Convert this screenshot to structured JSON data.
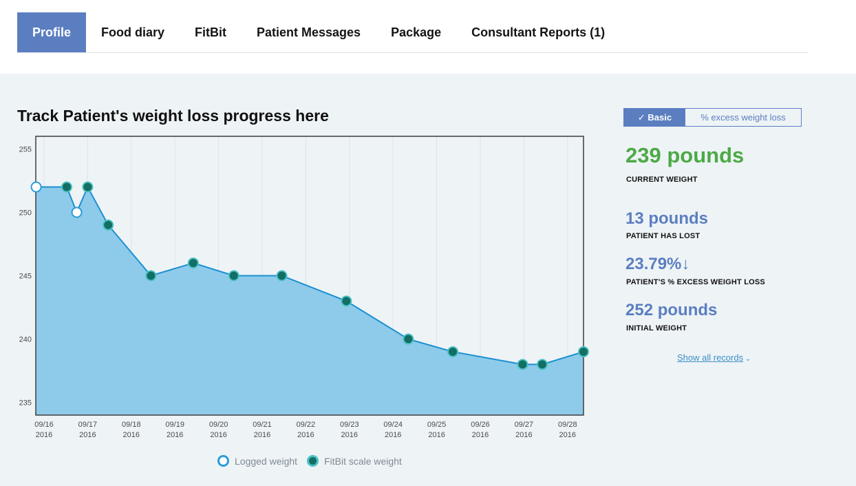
{
  "tabs": [
    {
      "label": "Profile",
      "active": true
    },
    {
      "label": "Food diary",
      "active": false
    },
    {
      "label": "FitBit",
      "active": false
    },
    {
      "label": "Patient Messages",
      "active": false
    },
    {
      "label": "Package",
      "active": false
    },
    {
      "label": "Consultant Reports (1)",
      "active": false
    }
  ],
  "chart_title": "Track Patient's weight loss progress here",
  "toggle": {
    "basic": "✓ Basic",
    "excess": "% excess weight loss"
  },
  "stats": {
    "current_value": "239 pounds",
    "current_label": "CURRENT WEIGHT",
    "lost_value": "13 pounds",
    "lost_label": "PATIENT HAS LOST",
    "excess_value": "23.79%",
    "excess_arrow": "↓",
    "excess_label": "PATIENT'S % EXCESS WEIGHT LOSS",
    "initial_value": "252 pounds",
    "initial_label": "INITIAL WEIGHT"
  },
  "show_all": "Show all records",
  "colors": {
    "area": "#8ecbea",
    "line": "#1a8fd0",
    "logged_fill": "#ffffff",
    "logged_stroke": "#2c9cd6",
    "fitbit_fill": "#136e63",
    "fitbit_stroke": "#4bc2c4",
    "green": "#4caa45",
    "blue": "#5b7ec1"
  },
  "chart_data": {
    "type": "area",
    "title": "Track Patient's weight loss progress here",
    "xlabel": "",
    "ylabel": "",
    "ylim": [
      234,
      256
    ],
    "xlim": [
      0,
      12.4
    ],
    "yticks": [
      235,
      240,
      245,
      250,
      255
    ],
    "xticks": [
      {
        "x": 0,
        "line1": "09/16",
        "line2": "2016"
      },
      {
        "x": 1,
        "line1": "09/17",
        "line2": "2016"
      },
      {
        "x": 2,
        "line1": "09/18",
        "line2": "2016"
      },
      {
        "x": 3,
        "line1": "09/19",
        "line2": "2016"
      },
      {
        "x": 4,
        "line1": "09/20",
        "line2": "2016"
      },
      {
        "x": 5,
        "line1": "09/21",
        "line2": "2016"
      },
      {
        "x": 6,
        "line1": "09/22",
        "line2": "2016"
      },
      {
        "x": 7,
        "line1": "09/23",
        "line2": "2016"
      },
      {
        "x": 8,
        "line1": "09/24",
        "line2": "2016"
      },
      {
        "x": 9,
        "line1": "09/25",
        "line2": "2016"
      },
      {
        "x": 10,
        "line1": "09/26",
        "line2": "2016"
      },
      {
        "x": 11,
        "line1": "09/27",
        "line2": "2016"
      },
      {
        "x": 12,
        "line1": "09/28",
        "line2": "2016"
      }
    ],
    "legend": [
      "Logged weight",
      "FitBit scale weight"
    ],
    "points": [
      {
        "x": -0.18,
        "y": 252,
        "source": "Logged weight"
      },
      {
        "x": 0.52,
        "y": 252,
        "source": "FitBit scale weight"
      },
      {
        "x": 0.75,
        "y": 250,
        "source": "Logged weight"
      },
      {
        "x": 1.0,
        "y": 252,
        "source": "FitBit scale weight"
      },
      {
        "x": 1.47,
        "y": 249,
        "source": "FitBit scale weight"
      },
      {
        "x": 2.45,
        "y": 245,
        "source": "FitBit scale weight"
      },
      {
        "x": 3.42,
        "y": 246,
        "source": "FitBit scale weight"
      },
      {
        "x": 4.35,
        "y": 245,
        "source": "FitBit scale weight"
      },
      {
        "x": 5.45,
        "y": 245,
        "source": "FitBit scale weight"
      },
      {
        "x": 6.93,
        "y": 243,
        "source": "FitBit scale weight"
      },
      {
        "x": 8.35,
        "y": 240,
        "source": "FitBit scale weight"
      },
      {
        "x": 9.37,
        "y": 239,
        "source": "FitBit scale weight"
      },
      {
        "x": 10.97,
        "y": 238,
        "source": "FitBit scale weight"
      },
      {
        "x": 11.42,
        "y": 238,
        "source": "FitBit scale weight"
      },
      {
        "x": 12.37,
        "y": 239,
        "source": "FitBit scale weight"
      }
    ]
  }
}
